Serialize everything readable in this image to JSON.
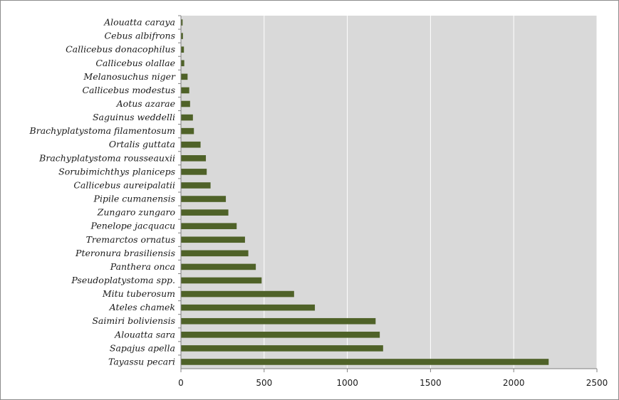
{
  "chart_data": {
    "type": "bar",
    "orientation": "horizontal",
    "title": "",
    "xlabel": "",
    "ylabel": "",
    "xlim": [
      0,
      2500
    ],
    "x_ticks": [
      0,
      500,
      1000,
      1500,
      2000,
      2500
    ],
    "grid": "vertical",
    "legend": "none",
    "colors": {
      "bar": "#4f6228",
      "plot_bg": "#d9d9d9",
      "grid": "#ffffff"
    },
    "categories": [
      "Alouatta caraya",
      "Cebus albifrons",
      "Callicebus donacophilus",
      "Callicebus olallae",
      "Melanosuchus niger",
      "Callicebus modestus",
      "Aotus azarae",
      "Saguinus weddelli",
      "Brachyplatystoma filamentosum",
      "Ortalis guttata",
      "Brachyplatystoma rousseauxii",
      "Sorubimichthys planiceps",
      "Callicebus aureipalatii",
      "Pipile cumanensis",
      "Zungaro zungaro",
      "Penelope jacquacu",
      "Tremarctos ornatus",
      "Pteronura brasiliensis",
      "Panthera onca",
      "Pseudoplatystoma spp.",
      "Mitu tuberosum",
      "Ateles chamek",
      "Saimiri boliviensis",
      "Alouatta sara",
      "Sapajus apella",
      "Tayassu pecari"
    ],
    "values": [
      10,
      12,
      18,
      20,
      40,
      50,
      55,
      72,
      78,
      118,
      150,
      155,
      178,
      270,
      285,
      335,
      385,
      405,
      450,
      485,
      680,
      805,
      1170,
      1195,
      1215,
      2210
    ]
  }
}
